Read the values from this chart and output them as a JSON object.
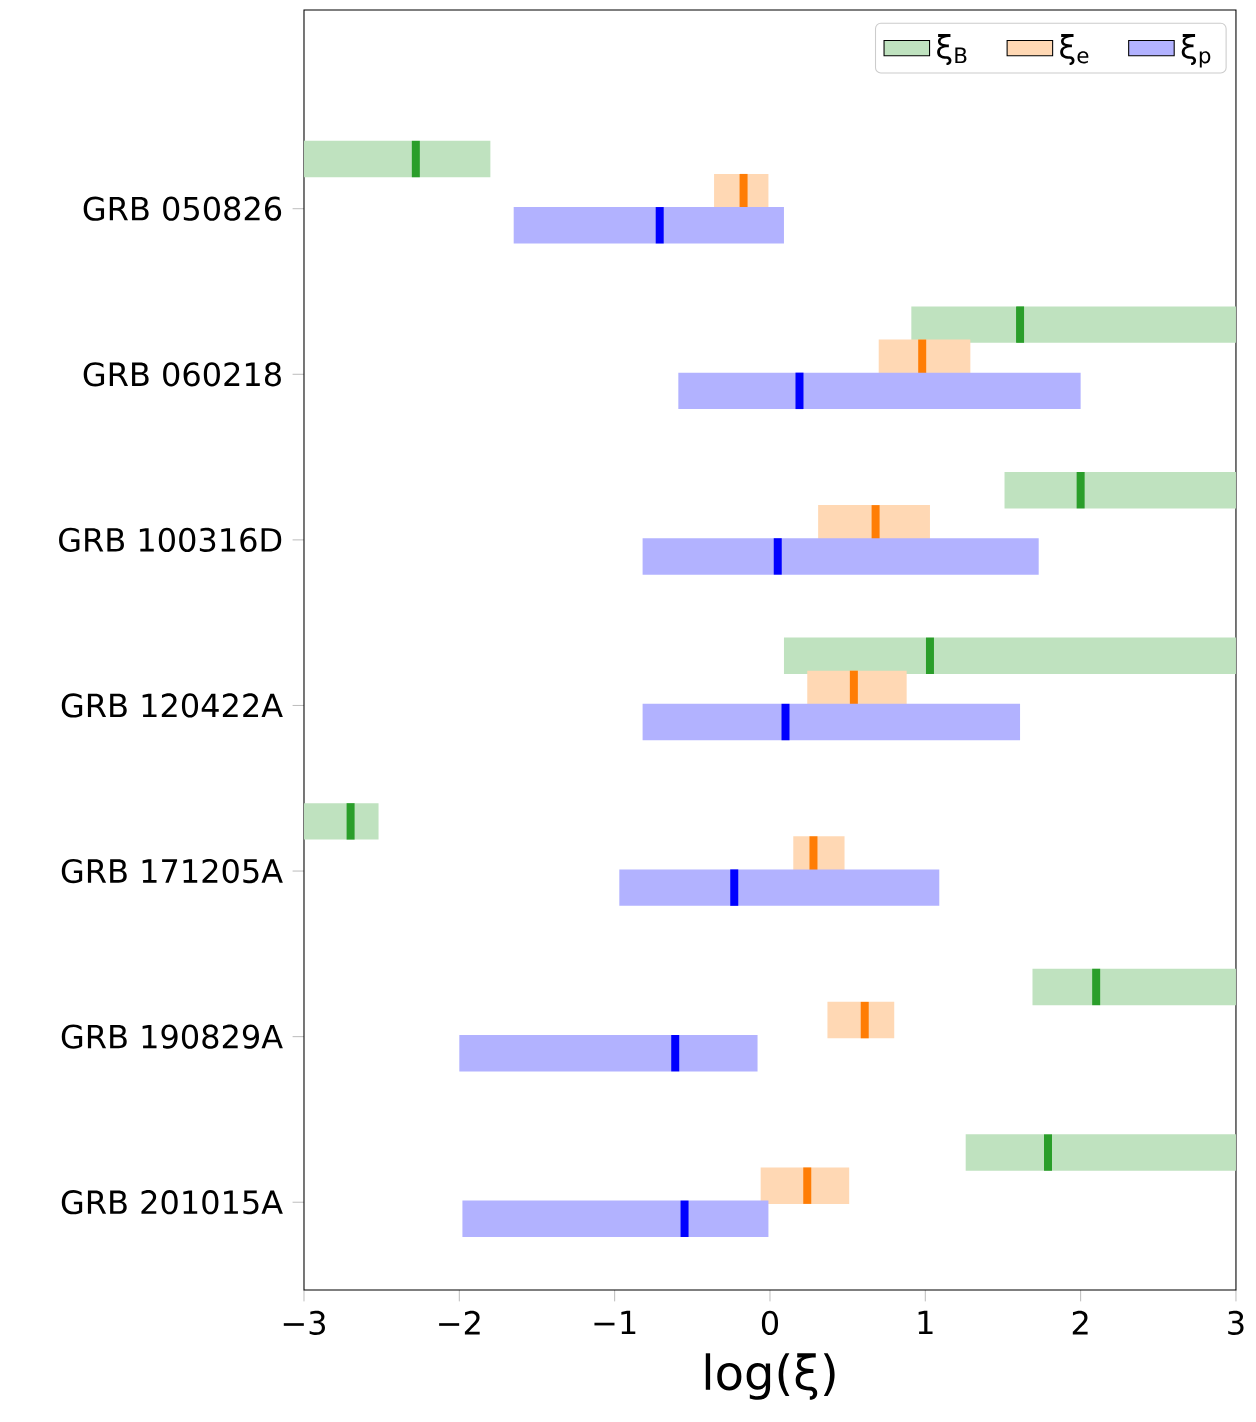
{
  "chart_data": {
    "type": "box",
    "orientation": "horizontal",
    "xlabel": "log(ξ)",
    "legend": "top right",
    "categories": [
      "GRB 050826",
      "GRB 060218",
      "GRB 100316D",
      "GRB 120422A",
      "GRB 171205A",
      "GRB 190829A",
      "GRB 201015A"
    ],
    "xlim": [
      -3,
      3
    ],
    "xticks": [
      {
        "value": -3,
        "label": "−3"
      },
      {
        "value": -2,
        "label": "−2"
      },
      {
        "value": -1,
        "label": "−1"
      },
      0,
      1,
      2,
      3
    ],
    "series": [
      {
        "name": "ξ$_{B}$",
        "color": "#bfe2bf",
        "boxes": [
          {
            "low": -3,
            "q1": -3,
            "median": -2.28,
            "q3": -1.8,
            "high": -1.8
          },
          {
            "low": 0.91,
            "q1": 0.91,
            "median": 1.61,
            "q3": 3,
            "high": 3
          },
          {
            "low": 1.51,
            "q1": 1.51,
            "median": 2.0,
            "q3": 3,
            "high": 3
          },
          {
            "low": 0.09,
            "q1": 0.09,
            "median": 1.03,
            "q3": 3,
            "high": 3
          },
          {
            "low": -3,
            "q1": -3,
            "median": -2.7,
            "q3": -2.52,
            "high": -2.52
          },
          {
            "low": 1.69,
            "q1": 1.69,
            "median": 2.1,
            "q3": 3,
            "high": 3
          },
          {
            "low": 1.26,
            "q1": 1.26,
            "median": 1.79,
            "q3": 3,
            "high": 3
          }
        ]
      },
      {
        "name": "ξ$_{e}$",
        "color": "#ffd8b4",
        "boxes": [
          {
            "low": -0.36,
            "q1": -0.36,
            "median": -0.17,
            "q3": -0.01,
            "high": -0.01
          },
          {
            "low": 0.7,
            "q1": 0.7,
            "median": 0.98,
            "q3": 1.29,
            "high": 1.29
          },
          {
            "low": 0.31,
            "q1": 0.31,
            "median": 0.68,
            "q3": 1.03,
            "high": 1.03
          },
          {
            "low": 0.24,
            "q1": 0.24,
            "median": 0.54,
            "q3": 0.88,
            "high": 0.88
          },
          {
            "low": 0.15,
            "q1": 0.15,
            "median": 0.28,
            "q3": 0.48,
            "high": 0.48
          },
          {
            "low": 0.37,
            "q1": 0.37,
            "median": 0.61,
            "q3": 0.8,
            "high": 0.8
          },
          {
            "low": -0.06,
            "q1": -0.06,
            "median": 0.24,
            "q3": 0.51,
            "high": 0.51
          }
        ]
      },
      {
        "name": "ξ$_{p}$",
        "color": "#b2b2ff",
        "boxes": [
          {
            "low": -1.65,
            "q1": -1.65,
            "median": -0.71,
            "q3": 0.09,
            "high": 0.09
          },
          {
            "low": -0.59,
            "q1": -0.59,
            "median": 0.19,
            "q3": 2.0,
            "high": 2.0
          },
          {
            "low": -0.82,
            "q1": -0.82,
            "median": 0.05,
            "q3": 1.73,
            "high": 1.73
          },
          {
            "low": -0.82,
            "q1": -0.82,
            "median": 0.1,
            "q3": 1.61,
            "high": 1.61
          },
          {
            "low": -0.97,
            "q1": -0.97,
            "median": -0.23,
            "q3": 1.09,
            "high": 1.09
          },
          {
            "low": -2.0,
            "q1": -2.0,
            "median": -0.61,
            "q3": -0.08,
            "high": -0.08
          },
          {
            "low": -1.98,
            "q1": -1.98,
            "median": -0.55,
            "q3": -0.01,
            "high": -0.01
          }
        ]
      }
    ]
  }
}
